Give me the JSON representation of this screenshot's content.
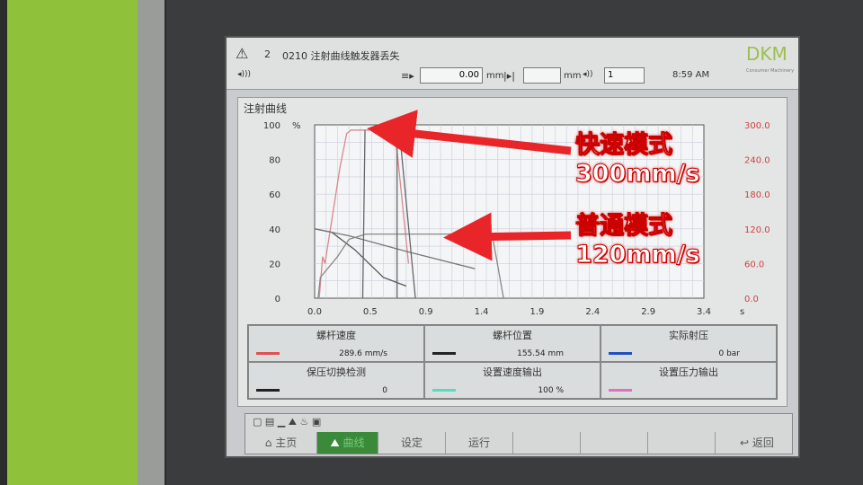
{
  "header": {
    "alarm_count": "2",
    "alarm_text": "0210 注射曲线触发器丢失",
    "position_value": "0.00",
    "position_unit": "mm",
    "field2_unit": "mm",
    "field3_value": "1",
    "time": "8:59 AM",
    "logo": "DKM",
    "logo_sub": "Consumer Machinery"
  },
  "panel": {
    "title": "注射曲线"
  },
  "chart_data": {
    "type": "line",
    "title": "",
    "xlabel": "s",
    "ylabel": "%",
    "xlim": [
      0.0,
      3.4
    ],
    "ylim": [
      0,
      100
    ],
    "y2lim": [
      0.0,
      300.0
    ],
    "x_ticks": [
      "0.0",
      "0.5",
      "0.9",
      "1.4",
      "1.9",
      "2.4",
      "2.9",
      "3.4"
    ],
    "y_ticks": [
      "100",
      "80",
      "60",
      "40",
      "20",
      "0"
    ],
    "y2_ticks": [
      "300.0",
      "240.0",
      "180.0",
      "120.0",
      "60.0",
      "0.0"
    ],
    "grid": true,
    "series": [
      {
        "color": "#d98890",
        "points": [
          [
            0.04,
            0
          ],
          [
            0.07,
            24
          ],
          [
            0.09,
            20
          ],
          [
            0.15,
            45
          ],
          [
            0.22,
            75
          ],
          [
            0.28,
            95
          ],
          [
            0.32,
            97
          ],
          [
            0.68,
            97
          ],
          [
            0.72,
            85
          ],
          [
            0.82,
            20
          ]
        ]
      },
      {
        "color": "#555555",
        "points": [
          [
            0,
            40
          ],
          [
            0.15,
            38
          ],
          [
            0.35,
            28
          ],
          [
            0.6,
            12
          ],
          [
            0.8,
            7
          ]
        ]
      },
      {
        "color": "#777777",
        "points": [
          [
            0,
            40
          ],
          [
            0.3,
            36
          ],
          [
            0.8,
            27
          ],
          [
            1.4,
            17
          ]
        ]
      },
      {
        "color": "#888888",
        "points": [
          [
            0.03,
            0
          ],
          [
            0.05,
            12
          ],
          [
            0.2,
            24
          ],
          [
            0.3,
            34
          ],
          [
            0.45,
            37
          ],
          [
            1.55,
            37
          ],
          [
            1.65,
            0
          ]
        ]
      },
      {
        "color": "#666666",
        "points": [
          [
            0.42,
            0
          ],
          [
            0.44,
            97
          ]
        ]
      },
      {
        "color": "#666666",
        "points": [
          [
            0.72,
            0
          ],
          [
            0.72,
            97
          ],
          [
            0.74,
            97
          ],
          [
            0.88,
            0
          ]
        ]
      }
    ]
  },
  "legend": [
    {
      "name": "螺杆速度",
      "value": "289.6 mm/s",
      "color": "#e05050"
    },
    {
      "name": "螺杆位置",
      "value": "155.54 mm",
      "color": "#222222"
    },
    {
      "name": "实际射压",
      "value": "0 bar",
      "color": "#2050c0"
    },
    {
      "name": "保压切换检测",
      "value": "0",
      "color": "#222222"
    },
    {
      "name": "设置速度输出",
      "value": "100 %",
      "color": "#50e0c0"
    },
    {
      "name": "设置压力输出",
      "value": "",
      "color": "#e070c0"
    }
  ],
  "nav": {
    "home": "主页",
    "curve": "曲线",
    "settings": "设定",
    "run": "运行",
    "back": "返回"
  },
  "annotations": {
    "fast": "快速模式",
    "fast_speed": "300mm/s",
    "normal": "普通模式",
    "normal_speed": "120mm/s"
  }
}
